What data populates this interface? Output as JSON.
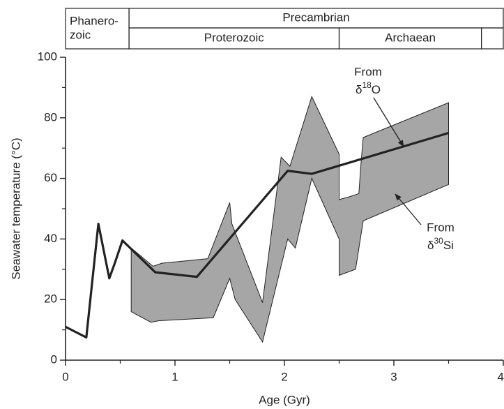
{
  "chart_data": {
    "type": "line",
    "xlabel": "Age (Gyr)",
    "ylabel": "Seawater temperature (°C)",
    "xlim": [
      0,
      4
    ],
    "ylim": [
      0,
      100
    ],
    "xticks": [
      0,
      1,
      2,
      3,
      4
    ],
    "yticks": [
      0,
      20,
      40,
      60,
      80,
      100
    ],
    "xminorticks": [
      0.5,
      1.5,
      2.5,
      3.5
    ],
    "yminorticks": [
      10,
      30,
      50,
      70,
      90
    ],
    "series": [
      {
        "name": "From δ18O",
        "color": "#222222",
        "x": [
          0,
          0.19,
          0.3,
          0.4,
          0.45,
          0.52,
          0.82,
          1.2,
          2.03,
          2.25,
          3.5
        ],
        "values": [
          11,
          7.5,
          45,
          27,
          32,
          39.5,
          29,
          27.5,
          62.5,
          61.5,
          75
        ]
      }
    ],
    "band": {
      "name": "From δ30Si",
      "color": "#a6a6a6",
      "x": [
        0.6,
        0.8,
        0.88,
        1.3,
        1.5,
        1.52,
        1.8,
        1.97,
        2.05,
        2.25,
        2.5,
        2.5,
        2.6,
        2.68,
        2.7,
        2.72,
        3.5,
        3.5,
        2.72,
        2.65,
        2.5,
        2.5,
        2.25,
        2.1,
        2.03,
        1.8,
        1.55,
        1.5,
        1.35,
        0.85,
        0.78,
        0.6
      ],
      "values": [
        37,
        31,
        32,
        33.5,
        52,
        45,
        19,
        67,
        64,
        87,
        68,
        53,
        54,
        55,
        65,
        73.5,
        85,
        58,
        46,
        30,
        28,
        40,
        60,
        37,
        40,
        6,
        20,
        27,
        14,
        13,
        12.5,
        16
      ]
    },
    "annotations": [
      {
        "line1": "From",
        "base": "δ",
        "sup": "18",
        "rest": "O"
      },
      {
        "line1": "From",
        "base": "δ",
        "sup": "30",
        "rest": "Si"
      }
    ],
    "eras": {
      "top": [
        {
          "lines": [
            "Phanero-",
            "zoic"
          ],
          "start": 0,
          "end": 0.58
        },
        {
          "lines": [
            "Precambrian"
          ],
          "start": 0.58,
          "end": 4
        }
      ],
      "bottom": [
        {
          "lines": [
            "Proterozoic"
          ],
          "start": 0.58,
          "end": 2.5
        },
        {
          "lines": [
            "Archaean"
          ],
          "start": 2.5,
          "end": 3.8
        },
        {
          "lines": [],
          "start": 3.8,
          "end": 4
        }
      ]
    }
  }
}
